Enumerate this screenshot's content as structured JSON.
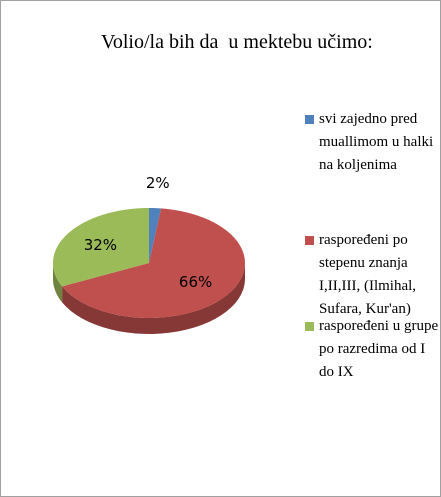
{
  "chart_data": {
    "type": "pie",
    "title": "Volio/la bih da  u mektebu učimo:",
    "categories": [
      "svi zajedno pred muallimom u halki na koljenima",
      "raspoređeni po stepenu znanja I,II,III, (Ilmihal, Sufara, Kur'an)",
      "raspoređeni  u grupe po razredima od I do IX"
    ],
    "values": [
      2,
      66,
      32
    ],
    "value_labels": [
      "2%",
      "66%",
      "32%"
    ],
    "colors": [
      "#4f81bd",
      "#c0504d",
      "#9bbb59"
    ],
    "legend": "right"
  }
}
